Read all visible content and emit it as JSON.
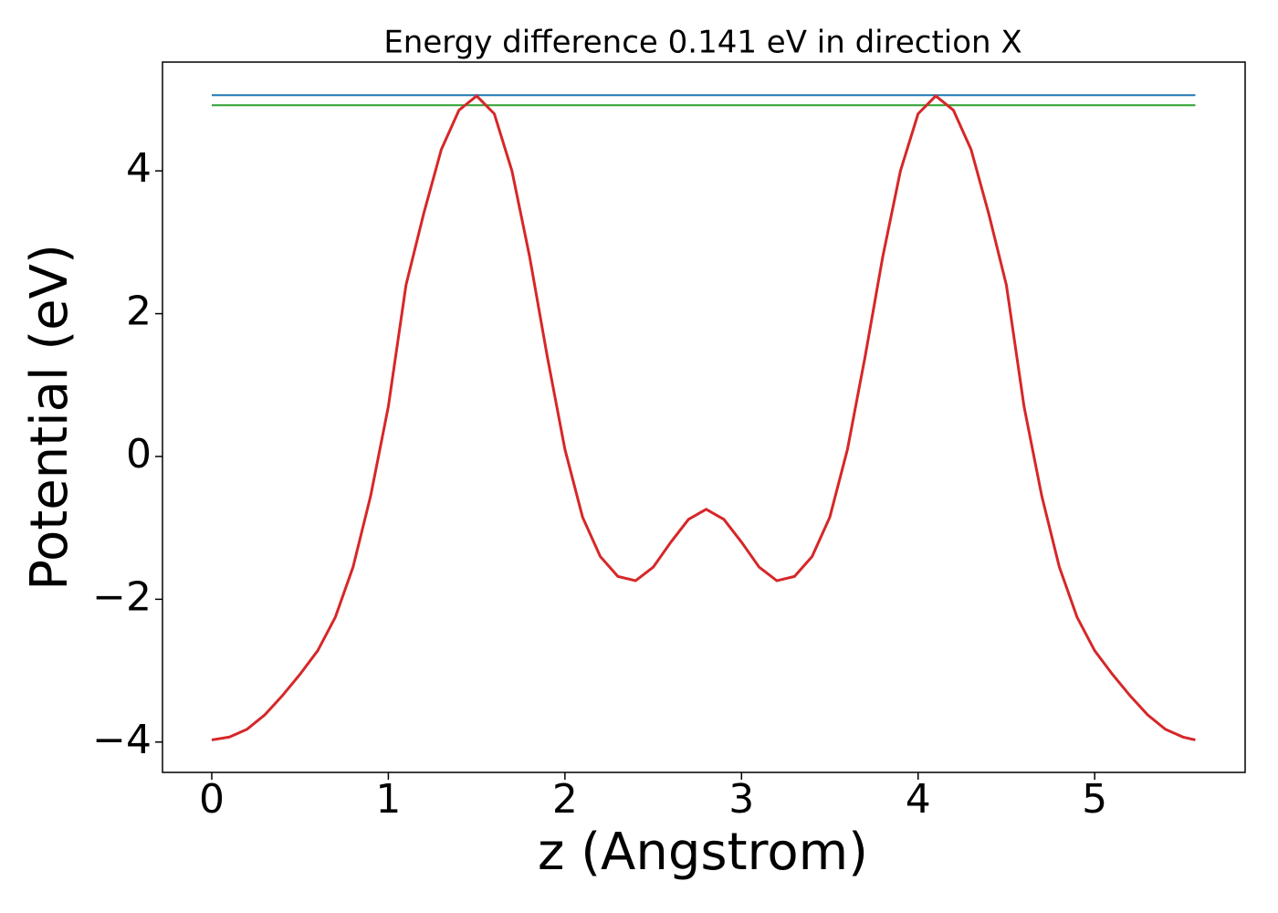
{
  "chart_data": {
    "type": "line",
    "title": "Energy difference 0.141 eV in direction X",
    "xlabel": "z (Angstrom)",
    "ylabel": "Potential (eV)",
    "xlim": [
      -0.279,
      5.852
    ],
    "ylim": [
      -4.425,
      5.524
    ],
    "xticks": [
      0,
      1,
      2,
      3,
      4,
      5
    ],
    "yticks": [
      {
        "value": -4,
        "label": "−4"
      },
      {
        "value": -2,
        "label": "−2"
      },
      0,
      2,
      4
    ],
    "series": [
      {
        "color": "#d62728",
        "x": [
          0,
          0.1,
          0.2,
          0.3,
          0.4,
          0.5,
          0.6,
          0.7,
          0.8,
          0.9,
          1.0,
          1.1,
          1.2,
          1.3,
          1.4,
          1.5,
          1.6,
          1.7,
          1.8,
          1.9,
          2.0,
          2.1,
          2.2,
          2.3,
          2.4,
          2.5,
          2.6,
          2.7,
          2.8,
          2.9,
          3.0,
          3.1,
          3.2,
          3.3,
          3.4,
          3.5,
          3.6,
          3.7,
          3.8,
          3.9,
          4.0,
          4.1,
          4.2,
          4.3,
          4.4,
          4.5,
          4.6,
          4.7,
          4.8,
          4.9,
          5.0,
          5.1,
          5.2,
          5.3,
          5.4,
          5.5,
          5.57
        ],
        "values": [
          -3.97,
          -3.93,
          -3.82,
          -3.62,
          -3.35,
          -3.05,
          -2.72,
          -2.25,
          -1.55,
          -0.55,
          0.7,
          2.4,
          3.4,
          4.3,
          4.85,
          5.05,
          4.8,
          4.0,
          2.8,
          1.4,
          0.1,
          -0.85,
          -1.4,
          -1.68,
          -1.74,
          -1.55,
          -1.2,
          -0.88,
          -0.74,
          -0.88,
          -1.2,
          -1.55,
          -1.74,
          -1.68,
          -1.4,
          -0.85,
          0.1,
          1.4,
          2.8,
          4.0,
          4.8,
          5.05,
          4.85,
          4.3,
          3.4,
          2.4,
          0.7,
          -0.55,
          -1.55,
          -2.25,
          -2.72,
          -3.05,
          -3.35,
          -3.62,
          -3.82,
          -3.93,
          -3.97
        ]
      },
      {
        "color": "#1f77b4",
        "x": [
          0,
          5.57
        ],
        "values": [
          5.06,
          5.06
        ]
      },
      {
        "color": "#2ca02c",
        "x": [
          0,
          5.57
        ],
        "values": [
          4.92,
          4.92
        ]
      }
    ]
  }
}
